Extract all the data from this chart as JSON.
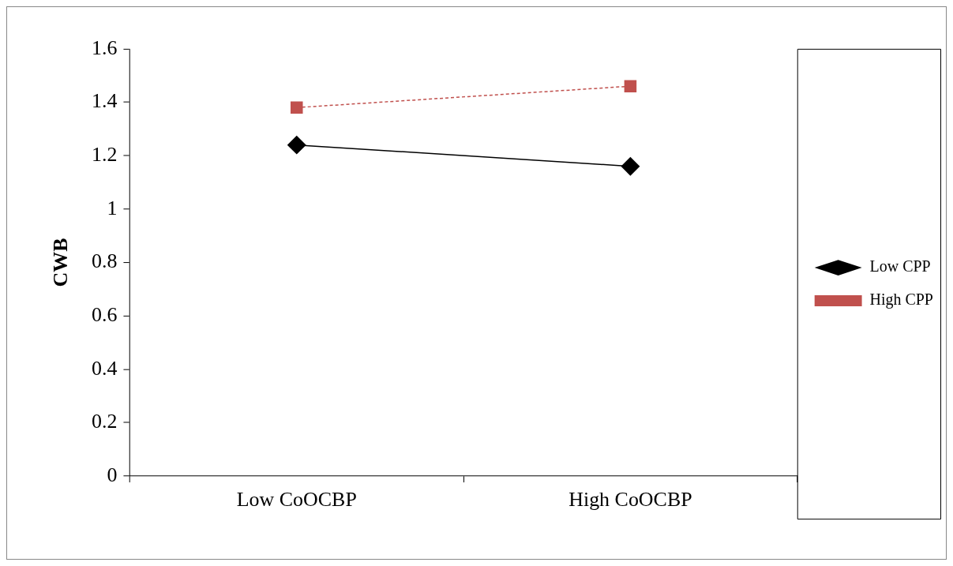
{
  "chart_data": {
    "type": "line",
    "ylabel": "CWB",
    "categories": [
      "Low CoOCBP",
      "High CoOCBP"
    ],
    "series": [
      {
        "name": "Low CPP",
        "color": "#000000",
        "values": [
          1.24,
          1.16
        ],
        "marker": "diamond",
        "line_style": "solid"
      },
      {
        "name": "High CPP",
        "color": "#c0504d",
        "values": [
          1.38,
          1.46
        ],
        "marker": "square",
        "line_style": "dashed"
      }
    ],
    "ylim": [
      0,
      1.6
    ],
    "yticks": [
      0,
      0.2,
      0.4,
      0.6,
      0.8,
      1,
      1.2,
      1.4,
      1.6
    ],
    "grid": false,
    "legend": "right"
  }
}
